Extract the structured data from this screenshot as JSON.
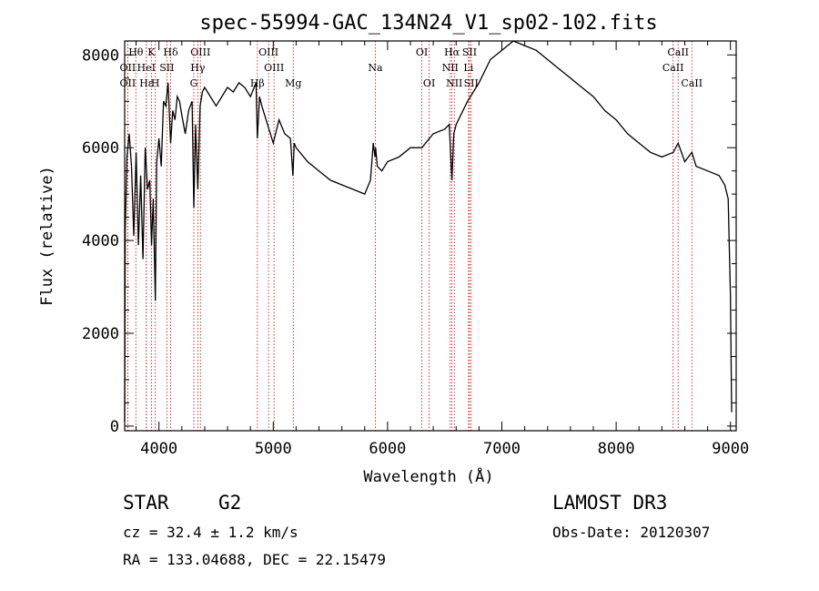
{
  "chart_data": {
    "type": "line",
    "title": "spec-55994-GAC_134N24_V1_sp02-102.fits",
    "xlabel": "Wavelength (Å)",
    "ylabel": "Flux (relative)",
    "xlim": [
      3700,
      9050
    ],
    "ylim": [
      -100,
      8300
    ],
    "xticks": [
      4000,
      5000,
      6000,
      7000,
      8000,
      9000
    ],
    "yticks": [
      0,
      2000,
      4000,
      6000,
      8000
    ],
    "series": [
      {
        "name": "flux",
        "x": [
          3700,
          3705,
          3720,
          3740,
          3760,
          3780,
          3800,
          3820,
          3840,
          3860,
          3880,
          3900,
          3920,
          3935,
          3950,
          3968,
          3980,
          4000,
          4020,
          4040,
          4060,
          4080,
          4102,
          4120,
          4140,
          4160,
          4180,
          4200,
          4230,
          4260,
          4290,
          4305,
          4320,
          4340,
          4360,
          4380,
          4400,
          4450,
          4500,
          4550,
          4600,
          4650,
          4700,
          4750,
          4800,
          4850,
          4861,
          4880,
          4900,
          4950,
          5000,
          5050,
          5100,
          5150,
          5172,
          5183,
          5200,
          5300,
          5400,
          5500,
          5600,
          5700,
          5800,
          5850,
          5875,
          5890,
          5896,
          5910,
          5950,
          6000,
          6100,
          6200,
          6300,
          6400,
          6500,
          6540,
          6563,
          6580,
          6600,
          6700,
          6800,
          6900,
          7000,
          7100,
          7200,
          7300,
          7400,
          7500,
          7600,
          7700,
          7800,
          7900,
          8000,
          8100,
          8200,
          8300,
          8400,
          8500,
          8542,
          8600,
          8662,
          8700,
          8800,
          8900,
          8950,
          8980,
          9000,
          9010
        ],
        "values": [
          100,
          4200,
          5800,
          6300,
          5600,
          4100,
          5900,
          3900,
          5400,
          3600,
          6000,
          5100,
          5300,
          3900,
          4900,
          2700,
          5700,
          6200,
          5600,
          7000,
          6900,
          7400,
          6100,
          6800,
          6600,
          7100,
          7000,
          6700,
          6300,
          6800,
          7000,
          4700,
          6500,
          5100,
          6900,
          7200,
          7300,
          7100,
          6900,
          7100,
          7300,
          7200,
          7400,
          7300,
          7100,
          7400,
          6200,
          7100,
          6900,
          6500,
          6100,
          6600,
          6300,
          6200,
          5400,
          6100,
          6000,
          5700,
          5500,
          5300,
          5200,
          5100,
          5000,
          5300,
          6100,
          5800,
          6000,
          5600,
          5500,
          5700,
          5800,
          6000,
          6000,
          6300,
          6400,
          6500,
          5300,
          6300,
          6500,
          7000,
          7400,
          7900,
          8100,
          8300,
          8200,
          8100,
          7900,
          7700,
          7500,
          7300,
          7100,
          6800,
          6600,
          6300,
          6100,
          5900,
          5800,
          5900,
          6100,
          5700,
          5900,
          5600,
          5500,
          5400,
          5200,
          4900,
          2800,
          300
        ]
      }
    ],
    "lines": [
      {
        "label": "Hθ",
        "wl": 3798,
        "row": 1
      },
      {
        "label": "OII",
        "wl": 3727,
        "row": 2
      },
      {
        "label": "OII",
        "wl": 3727,
        "row": 3
      },
      {
        "label": "Hε",
        "wl": 3890,
        "row": 3
      },
      {
        "label": "HeI",
        "wl": 3889,
        "row": 2
      },
      {
        "label": "K",
        "wl": 3934,
        "row": 1
      },
      {
        "label": "SII",
        "wl": 4069,
        "row": 2
      },
      {
        "label": "H",
        "wl": 3968,
        "row": 3
      },
      {
        "label": "Hδ",
        "wl": 4102,
        "row": 1
      },
      {
        "label": "OIII",
        "wl": 4363,
        "row": 1
      },
      {
        "label": "Hγ",
        "wl": 4340,
        "row": 2
      },
      {
        "label": "G",
        "wl": 4305,
        "row": 3
      },
      {
        "label": "Hβ",
        "wl": 4861,
        "row": 3
      },
      {
        "label": "OIII",
        "wl": 4959,
        "row": 1
      },
      {
        "label": "OIII",
        "wl": 5007,
        "row": 2
      },
      {
        "label": "Mg",
        "wl": 5175,
        "row": 3
      },
      {
        "label": "Na",
        "wl": 5893,
        "row": 2
      },
      {
        "label": "OI",
        "wl": 6300,
        "row": 1
      },
      {
        "label": "OI",
        "wl": 6364,
        "row": 3
      },
      {
        "label": "Hα",
        "wl": 6563,
        "row": 1
      },
      {
        "label": "NII",
        "wl": 6548,
        "row": 2
      },
      {
        "label": "NII",
        "wl": 6584,
        "row": 3
      },
      {
        "label": "SII",
        "wl": 6717,
        "row": 1
      },
      {
        "label": "Li",
        "wl": 6708,
        "row": 2
      },
      {
        "label": "SII",
        "wl": 6731,
        "row": 3
      },
      {
        "label": "CaII",
        "wl": 8542,
        "row": 1
      },
      {
        "label": "CaII",
        "wl": 8498,
        "row": 2
      },
      {
        "label": "CaII",
        "wl": 8662,
        "row": 3
      }
    ]
  },
  "info": {
    "object_class": "STAR",
    "subclass": "G2",
    "survey": "LAMOST DR3",
    "cz": "cz = 32.4 ± 1.2 km/s",
    "obs_date": "Obs-Date: 20120307",
    "coords": "RA = 133.04688, DEC =  22.15479"
  },
  "colors": {
    "line_marker": "#cc2222",
    "spectrum": "#000000"
  }
}
